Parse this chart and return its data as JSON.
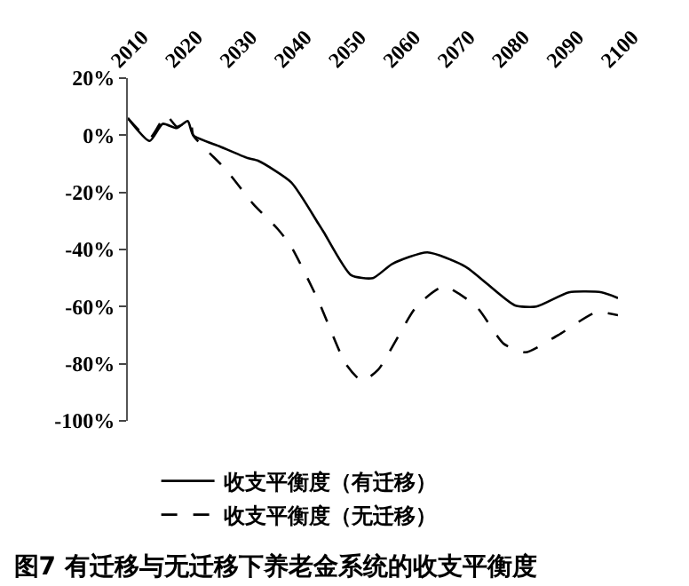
{
  "chart_data": {
    "type": "line",
    "title": "图7 有迁移与无迁移下养老金系统的收支平衡度",
    "xlim": [
      2010,
      2100
    ],
    "xticks": [
      2010,
      2020,
      2030,
      2040,
      2050,
      2060,
      2070,
      2080,
      2090,
      2100
    ],
    "ylim": [
      -100,
      20
    ],
    "yticks": [
      {
        "value": -100,
        "label": "-100%"
      },
      {
        "value": -80,
        "label": "-80%"
      },
      {
        "value": -60,
        "label": "-60%"
      },
      {
        "value": -40,
        "label": "-40%"
      },
      {
        "value": -20,
        "label": "-20%"
      },
      {
        "value": 0,
        "label": "0%"
      },
      {
        "value": 20,
        "label": "20%"
      }
    ],
    "grid": false,
    "legend": "bottom",
    "marker": "none",
    "series": [
      {
        "name": "收支平衡度（有迁移）",
        "color": "#000000",
        "line_style": "solid",
        "x": [
          2010,
          2014,
          2016.4,
          2019,
          2021,
          2022,
          2027,
          2032,
          2034,
          2040,
          2045,
          2046,
          2051,
          2055,
          2058.6,
          2065,
          2072,
          2081,
          2085,
          2091,
          2097,
          2100
        ],
        "values": [
          6,
          -2,
          4,
          2.5,
          5,
          0,
          -4,
          -8,
          -9,
          -16.5,
          -31,
          -34,
          -49,
          -50,
          -45,
          -41,
          -46,
          -59.5,
          -60,
          -55,
          -55,
          -57
        ]
      },
      {
        "name": "收支平衡度（无迁移）",
        "color": "#000000",
        "line_style": "dashed",
        "x": [
          2010,
          2014,
          2017,
          2019,
          2021.5,
          2022,
          2028,
          2033,
          2037.6,
          2040,
          2045,
          2050,
          2053,
          2056,
          2063,
          2068,
          2074,
          2079,
          2083,
          2089,
          2096,
          2100
        ],
        "values": [
          6,
          -1,
          7,
          3,
          5,
          0,
          -12,
          -24,
          -33,
          -39,
          -58,
          -80,
          -86,
          -82,
          -60,
          -53,
          -60,
          -73,
          -76,
          -70,
          -62,
          -63
        ]
      }
    ]
  }
}
